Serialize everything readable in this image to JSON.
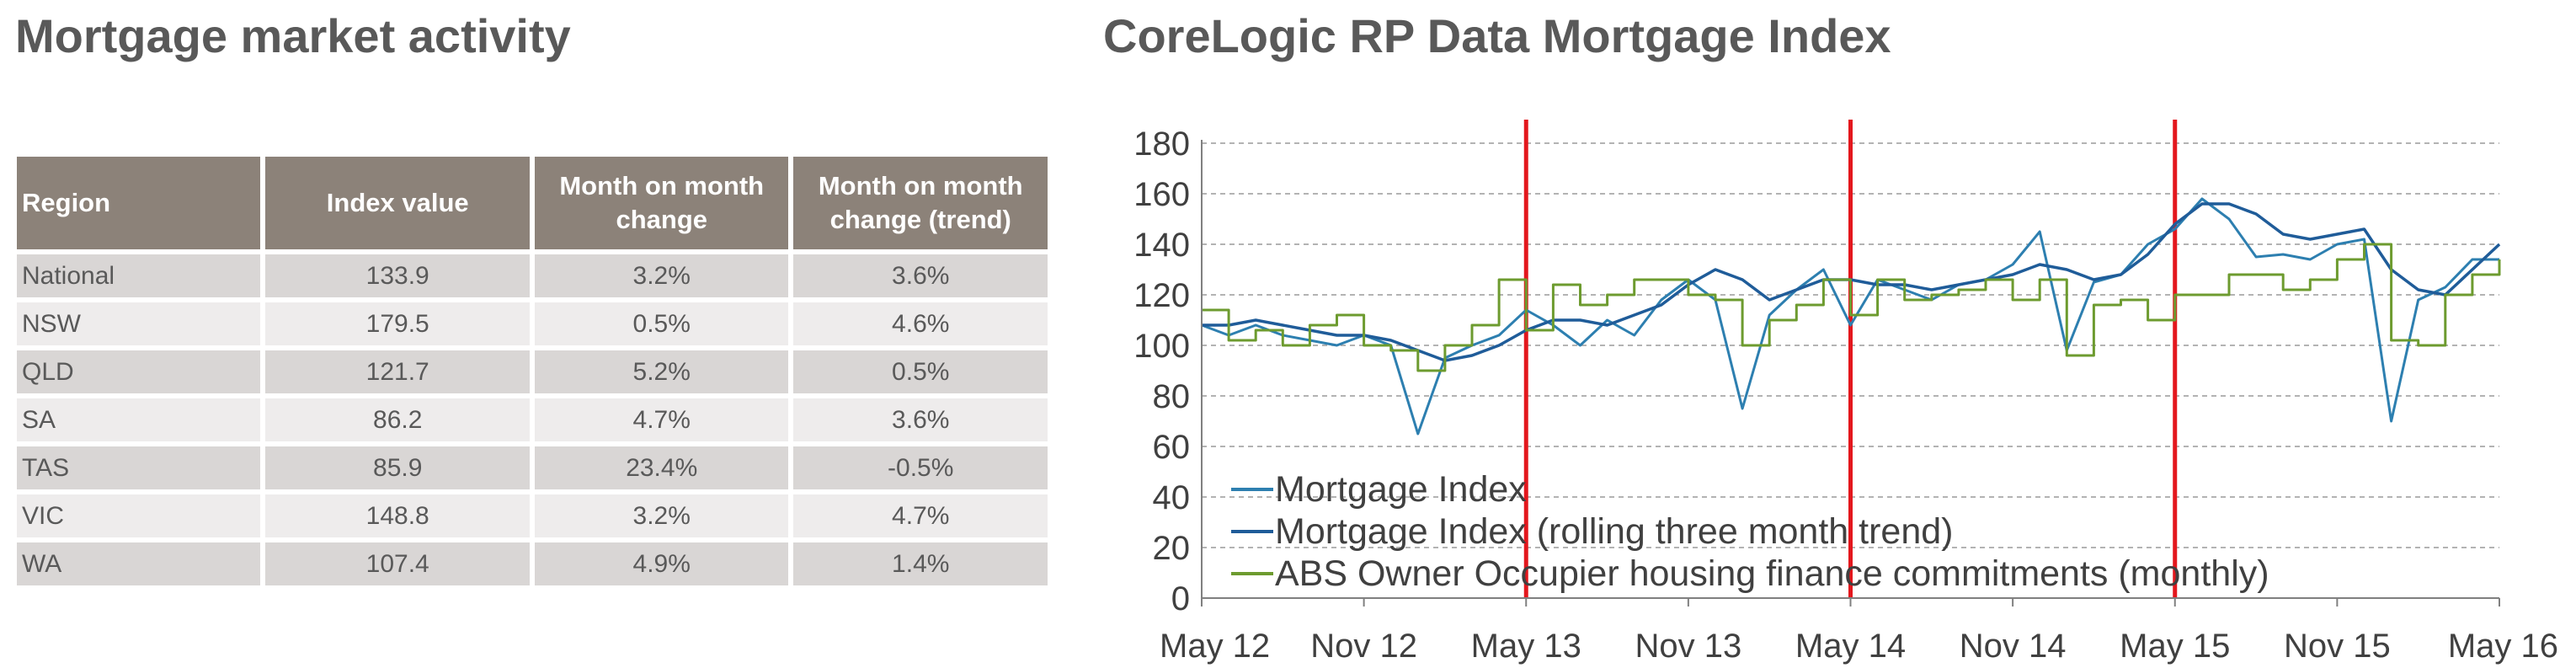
{
  "left_panel": {
    "title": "Mortgage market activity",
    "table": {
      "headers": [
        "Region",
        "Index value",
        "Month on month change",
        "Month on month change (trend)"
      ],
      "rows": [
        {
          "region": "National",
          "index": "133.9",
          "mom": "3.2%",
          "trend": "3.6%"
        },
        {
          "region": "NSW",
          "index": "179.5",
          "mom": "0.5%",
          "trend": "4.6%"
        },
        {
          "region": "QLD",
          "index": "121.7",
          "mom": "5.2%",
          "trend": "0.5%"
        },
        {
          "region": "SA",
          "index": "86.2",
          "mom": "4.7%",
          "trend": "3.6%"
        },
        {
          "region": "TAS",
          "index": "85.9",
          "mom": "23.4%",
          "trend": "-0.5%"
        },
        {
          "region": "VIC",
          "index": "148.8",
          "mom": "3.2%",
          "trend": "4.7%"
        },
        {
          "region": "WA",
          "index": "107.4",
          "mom": "4.9%",
          "trend": "1.4%"
        }
      ]
    }
  },
  "right_panel": {
    "title": "CoreLogic RP Data Mortgage Index"
  },
  "chart_data": {
    "type": "line",
    "title": "CoreLogic RP Data Mortgage Index",
    "xlabel": "",
    "ylabel": "",
    "ylim": [
      0,
      180
    ],
    "yticks": [
      0,
      20,
      40,
      60,
      80,
      100,
      120,
      140,
      160,
      180
    ],
    "xlim": [
      "May 12",
      "May 16"
    ],
    "xticks": [
      "May 12",
      "Nov 12",
      "May 13",
      "Nov 13",
      "May 14",
      "Nov 14",
      "May 15",
      "Nov 15",
      "May 16"
    ],
    "grid": "horizontal dashed",
    "legend_position": "bottom-left",
    "reference_lines": {
      "color": "#e3171d",
      "x": [
        "May 13",
        "May 14",
        "May 15"
      ]
    },
    "series": [
      {
        "name": "Mortgage Index",
        "color": "#2d7fb0",
        "x": [
          "May 12",
          "Jun 12",
          "Jul 12",
          "Aug 12",
          "Sep 12",
          "Oct 12",
          "Nov 12",
          "Dec 12",
          "Jan 13",
          "Feb 13",
          "Mar 13",
          "Apr 13",
          "May 13",
          "Jun 13",
          "Jul 13",
          "Aug 13",
          "Sep 13",
          "Oct 13",
          "Nov 13",
          "Dec 13",
          "Jan 14",
          "Feb 14",
          "Mar 14",
          "Apr 14",
          "May 14",
          "Jun 14",
          "Jul 14",
          "Aug 14",
          "Sep 14",
          "Oct 14",
          "Nov 14",
          "Dec 14",
          "Jan 15",
          "Feb 15",
          "Mar 15",
          "Apr 15",
          "May 15",
          "Jun 15",
          "Jul 15",
          "Aug 15",
          "Sep 15",
          "Oct 15",
          "Nov 15",
          "Dec 15",
          "Jan 16",
          "Feb 16",
          "Mar 16",
          "Apr 16",
          "May 16"
        ],
        "values": [
          108,
          104,
          108,
          104,
          102,
          100,
          104,
          100,
          65,
          95,
          100,
          104,
          114,
          108,
          100,
          110,
          104,
          118,
          126,
          118,
          75,
          112,
          122,
          130,
          108,
          126,
          122,
          118,
          124,
          126,
          132,
          145,
          98,
          125,
          128,
          140,
          146,
          158,
          150,
          135,
          136,
          134,
          140,
          142,
          70,
          118,
          123,
          134,
          134
        ]
      },
      {
        "name": "Mortgage Index (rolling three month trend)",
        "color": "#1f5c99",
        "x": [
          "May 12",
          "Jun 12",
          "Jul 12",
          "Aug 12",
          "Sep 12",
          "Oct 12",
          "Nov 12",
          "Dec 12",
          "Jan 13",
          "Feb 13",
          "Mar 13",
          "Apr 13",
          "May 13",
          "Jun 13",
          "Jul 13",
          "Aug 13",
          "Sep 13",
          "Oct 13",
          "Nov 13",
          "Dec 13",
          "Jan 14",
          "Feb 14",
          "Mar 14",
          "Apr 14",
          "May 14",
          "Jun 14",
          "Jul 14",
          "Aug 14",
          "Sep 14",
          "Oct 14",
          "Nov 14",
          "Dec 14",
          "Jan 15",
          "Feb 15",
          "Mar 15",
          "Apr 15",
          "May 15",
          "Jun 15",
          "Jul 15",
          "Aug 15",
          "Sep 15",
          "Oct 15",
          "Nov 15",
          "Dec 15",
          "Jan 16",
          "Feb 16",
          "Mar 16",
          "Apr 16",
          "May 16"
        ],
        "values": [
          108,
          108,
          110,
          108,
          106,
          104,
          104,
          102,
          98,
          94,
          96,
          100,
          106,
          110,
          110,
          108,
          112,
          116,
          124,
          130,
          126,
          118,
          122,
          126,
          126,
          124,
          124,
          122,
          124,
          126,
          128,
          132,
          130,
          126,
          128,
          136,
          148,
          156,
          156,
          152,
          144,
          142,
          144,
          146,
          130,
          122,
          120,
          130,
          140
        ]
      },
      {
        "name": "ABS Owner Occupier housing finance commitments (monthly)",
        "color": "#6d9b2f",
        "x": [
          "May 12",
          "Jun 12",
          "Jul 12",
          "Aug 12",
          "Sep 12",
          "Oct 12",
          "Nov 12",
          "Dec 12",
          "Jan 13",
          "Feb 13",
          "Mar 13",
          "Apr 13",
          "May 13",
          "Jun 13",
          "Jul 13",
          "Aug 13",
          "Sep 13",
          "Oct 13",
          "Nov 13",
          "Dec 13",
          "Jan 14",
          "Feb 14",
          "Mar 14",
          "Apr 14",
          "May 14",
          "Jun 14",
          "Jul 14",
          "Aug 14",
          "Sep 14",
          "Oct 14",
          "Nov 14",
          "Dec 14",
          "Jan 15",
          "Feb 15",
          "Mar 15",
          "Apr 15",
          "May 15",
          "Jun 15",
          "Jul 15",
          "Aug 15",
          "Sep 15",
          "Oct 15",
          "Nov 15",
          "Dec 15",
          "Jan 16",
          "Feb 16",
          "Mar 16",
          "Apr 16",
          "May 16"
        ],
        "values": [
          114,
          102,
          106,
          100,
          108,
          112,
          100,
          98,
          90,
          100,
          108,
          126,
          106,
          124,
          116,
          120,
          126,
          126,
          120,
          118,
          100,
          110,
          116,
          126,
          112,
          126,
          118,
          120,
          122,
          126,
          118,
          126,
          96,
          116,
          118,
          110,
          120,
          120,
          128,
          128,
          122,
          126,
          134,
          140,
          102,
          100,
          120,
          128,
          134
        ]
      }
    ]
  }
}
